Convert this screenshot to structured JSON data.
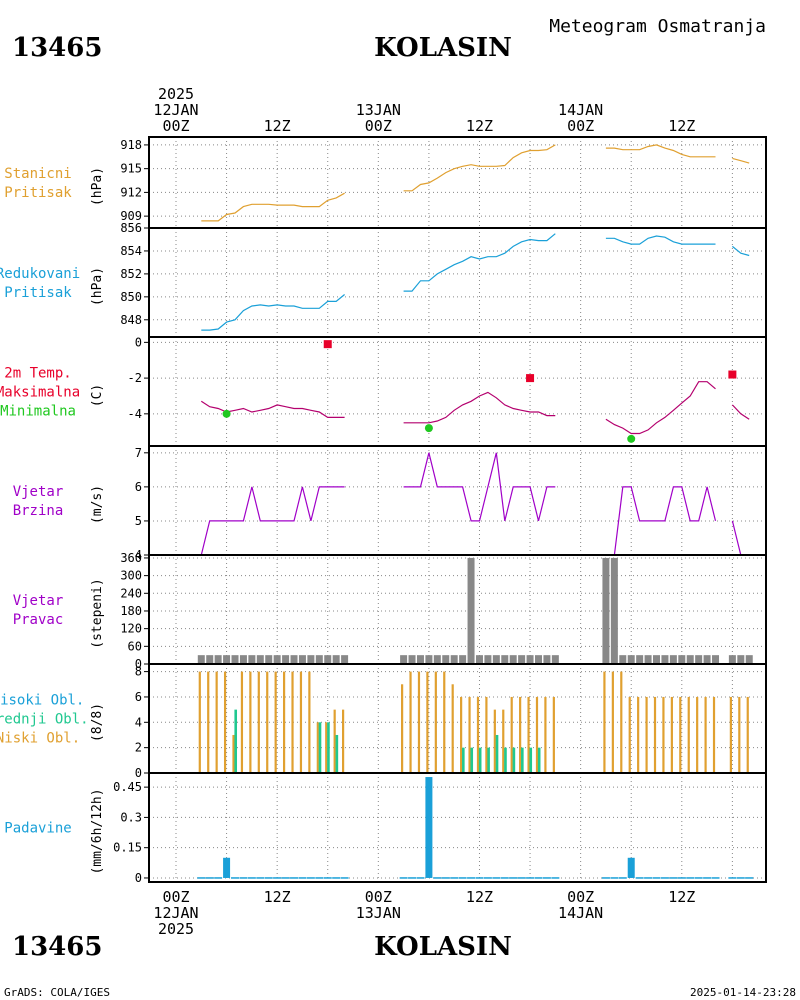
{
  "header": {
    "station_id": "13465",
    "station_name": "KOLASIN",
    "product": "Meteogram Osmatranja"
  },
  "footer": {
    "station_id": "13465",
    "station_name": "KOLASIN",
    "credit": "GrADS: COLA/IGES",
    "timestamp": "2025-01-14-23:28"
  },
  "time_axis": {
    "top_labels": [
      {
        "hour": 0,
        "lines": [
          "2025",
          "12JAN",
          "00Z"
        ]
      },
      {
        "hour": 12,
        "lines": [
          "12Z"
        ]
      },
      {
        "hour": 24,
        "lines": [
          "13JAN",
          "00Z"
        ]
      },
      {
        "hour": 36,
        "lines": [
          "12Z"
        ]
      },
      {
        "hour": 48,
        "lines": [
          "14JAN",
          "00Z"
        ]
      },
      {
        "hour": 60,
        "lines": [
          "12Z"
        ]
      }
    ],
    "bottom_labels": [
      {
        "hour": 0,
        "lines": [
          "00Z",
          "12JAN",
          "2025"
        ]
      },
      {
        "hour": 12,
        "lines": [
          "12Z"
        ]
      },
      {
        "hour": 24,
        "lines": [
          "00Z",
          "13JAN"
        ]
      },
      {
        "hour": 36,
        "lines": [
          "12Z"
        ]
      },
      {
        "hour": 48,
        "lines": [
          "00Z",
          "14JAN"
        ]
      },
      {
        "hour": 60,
        "lines": [
          "12Z"
        ]
      }
    ]
  },
  "colors": {
    "station_pressure": "#e0a030",
    "reduced_pressure": "#1aa0d8",
    "tmax": "#e8002a",
    "tmin": "#20c820",
    "temp_line": "#b4006e",
    "wind": "#a000c8",
    "wind_dir_bar": "#888888",
    "cloud_low": "#e0a030",
    "cloud_mid": "#20c890",
    "cloud_high": "#1aa0d8",
    "precip": "#1aa0d8",
    "grid": "#888888",
    "text": "#000000"
  },
  "chart_data": [
    {
      "id": "station_pressure",
      "type": "line",
      "label_lines": [
        "Stanicni",
        "Pritisak"
      ],
      "unit": "(hPa)",
      "ylim": [
        907.5,
        919
      ],
      "yticks": [
        909,
        912,
        915,
        918
      ],
      "gap_threshold": 2,
      "series": [
        {
          "x": [
            3,
            4,
            5,
            6,
            7,
            8,
            9,
            10,
            11,
            12,
            13,
            14,
            15,
            16,
            17,
            18,
            19,
            20
          ],
          "values": [
            908.4,
            908.4,
            908.4,
            909.2,
            909.4,
            910.2,
            910.5,
            910.5,
            910.5,
            910.4,
            910.4,
            910.4,
            910.2,
            910.2,
            910.2,
            911.0,
            911.3,
            911.9
          ]
        },
        {
          "x": [
            27,
            28,
            29,
            30,
            31,
            32,
            33,
            34,
            35,
            36,
            37,
            38,
            39,
            40,
            41,
            42,
            43,
            44,
            45
          ],
          "values": [
            912.2,
            912.2,
            913.0,
            913.2,
            913.8,
            914.5,
            915.0,
            915.3,
            915.5,
            915.3,
            915.3,
            915.3,
            915.4,
            916.4,
            917.0,
            917.3,
            917.3,
            917.4,
            918.0
          ]
        },
        {
          "x": [
            51,
            52,
            53,
            54,
            55,
            56,
            57,
            58,
            59,
            60,
            61,
            62,
            63,
            64
          ],
          "values": [
            917.6,
            917.6,
            917.4,
            917.4,
            917.4,
            917.8,
            918.0,
            917.6,
            917.3,
            916.8,
            916.5,
            916.5,
            916.5,
            916.5
          ]
        },
        {
          "x": [
            66,
            67,
            68
          ],
          "values": [
            916.3,
            916.0,
            915.7
          ]
        }
      ]
    },
    {
      "id": "reduced_pressure",
      "type": "line",
      "label_lines": [
        "Redukovani",
        "Pritisak"
      ],
      "unit": "(hPa)",
      "ylim": [
        846.5,
        856
      ],
      "yticks": [
        848,
        850,
        852,
        854,
        856
      ],
      "gap_threshold": 2,
      "series": [
        {
          "x": [
            3,
            4,
            5,
            6,
            7,
            8,
            9,
            10,
            11,
            12,
            13,
            14,
            15,
            16,
            17,
            18,
            19,
            20
          ],
          "values": [
            847.1,
            847.1,
            847.2,
            847.8,
            848.0,
            848.8,
            849.2,
            849.3,
            849.2,
            849.3,
            849.2,
            849.2,
            849.0,
            849.0,
            849.0,
            849.6,
            849.6,
            850.2
          ]
        },
        {
          "x": [
            27,
            28,
            29,
            30,
            31,
            32,
            33,
            34,
            35,
            36,
            37,
            38,
            39,
            40,
            41,
            42,
            43,
            44,
            45
          ],
          "values": [
            850.5,
            850.5,
            851.4,
            851.4,
            852.0,
            852.4,
            852.8,
            853.1,
            853.5,
            853.3,
            853.5,
            853.5,
            853.8,
            854.4,
            854.8,
            855.0,
            854.9,
            854.9,
            855.5
          ]
        },
        {
          "x": [
            51,
            52,
            53,
            54,
            55,
            56,
            57,
            58,
            59,
            60,
            61,
            62,
            63,
            64
          ],
          "values": [
            855.1,
            855.1,
            854.8,
            854.6,
            854.6,
            855.1,
            855.3,
            855.2,
            854.8,
            854.6,
            854.6,
            854.6,
            854.6,
            854.6
          ]
        },
        {
          "x": [
            66,
            67,
            68
          ],
          "values": [
            854.4,
            853.8,
            853.6
          ]
        }
      ]
    },
    {
      "id": "temperature",
      "type": "line",
      "label_lines": [
        "2m Temp.",
        "Maksimalna",
        "Minimalna"
      ],
      "label_color_keys": [
        "tmax",
        "tmax",
        "tmin"
      ],
      "unit": "(C)",
      "ylim": [
        -5.8,
        0.3
      ],
      "yticks": [
        0,
        -2,
        -4
      ],
      "gap_threshold": 2,
      "series": [
        {
          "x": [
            3,
            4,
            5,
            6,
            7,
            8,
            9,
            10,
            11,
            12,
            13,
            14,
            15,
            16,
            17,
            18,
            19,
            20
          ],
          "values": [
            -3.3,
            -3.6,
            -3.7,
            -3.9,
            -3.8,
            -3.7,
            -3.9,
            -3.8,
            -3.7,
            -3.5,
            -3.6,
            -3.7,
            -3.7,
            -3.8,
            -3.9,
            -4.2,
            -4.2,
            -4.2
          ]
        },
        {
          "x": [
            27,
            28,
            29,
            30,
            31,
            32,
            33,
            34,
            35,
            36,
            37,
            38,
            39,
            40,
            41,
            42,
            43,
            44,
            45
          ],
          "values": [
            -4.5,
            -4.5,
            -4.5,
            -4.5,
            -4.4,
            -4.2,
            -3.8,
            -3.5,
            -3.3,
            -3.0,
            -2.8,
            -3.1,
            -3.5,
            -3.7,
            -3.8,
            -3.9,
            -3.9,
            -4.1,
            -4.1
          ]
        },
        {
          "x": [
            51,
            52,
            53,
            54,
            55,
            56,
            57,
            58,
            59,
            60,
            61,
            62,
            63,
            64
          ],
          "values": [
            -4.3,
            -4.6,
            -4.8,
            -5.1,
            -5.1,
            -4.9,
            -4.5,
            -4.2,
            -3.8,
            -3.4,
            -3.0,
            -2.2,
            -2.2,
            -2.6
          ]
        },
        {
          "x": [
            66,
            67,
            68
          ],
          "values": [
            -3.5,
            -4.0,
            -4.3
          ]
        }
      ],
      "tmax_points": [
        {
          "x": 18,
          "y": -0.1
        },
        {
          "x": 42,
          "y": -2.0
        },
        {
          "x": 66,
          "y": -1.8
        }
      ],
      "tmin_points": [
        {
          "x": 6,
          "y": -4.0
        },
        {
          "x": 30,
          "y": -4.8
        },
        {
          "x": 54,
          "y": -5.4
        }
      ]
    },
    {
      "id": "wind_speed",
      "type": "line",
      "label_lines": [
        "Vjetar",
        "Brzina"
      ],
      "unit": "(m/s)",
      "ylim": [
        4,
        7.2
      ],
      "yticks": [
        4,
        5,
        6,
        7
      ],
      "gap_threshold": 2,
      "series": [
        {
          "x": [
            3,
            4,
            5,
            6,
            7,
            8,
            9,
            10,
            11,
            12,
            13,
            14,
            15,
            16,
            17,
            18,
            19,
            20
          ],
          "values": [
            4,
            5,
            5,
            5,
            5,
            5,
            6,
            5,
            5,
            5,
            5,
            5,
            6,
            5,
            6,
            6,
            6,
            6
          ]
        },
        {
          "x": [
            27,
            28,
            29,
            30,
            31,
            32,
            33,
            34,
            35,
            36,
            37,
            38,
            39,
            40,
            41,
            42,
            43,
            44,
            45
          ],
          "values": [
            6,
            6,
            6,
            7,
            6,
            6,
            6,
            6,
            5,
            5,
            6,
            7,
            5,
            6,
            6,
            6,
            5,
            6,
            6
          ]
        },
        {
          "x": [
            51,
            52,
            53,
            54,
            55,
            56,
            57,
            58,
            59,
            60,
            61,
            62,
            63,
            64
          ],
          "values": [
            4,
            4,
            6,
            6,
            5,
            5,
            5,
            5,
            6,
            6,
            5,
            5,
            6,
            5
          ]
        },
        {
          "x": [
            66,
            67,
            68
          ],
          "values": [
            5,
            4,
            4
          ]
        }
      ]
    },
    {
      "id": "wind_direction",
      "type": "bar",
      "label_lines": [
        "Vjetar",
        "Pravac"
      ],
      "unit": "(stepeni)",
      "ylim": [
        0,
        370
      ],
      "yticks": [
        0,
        60,
        120,
        180,
        240,
        300,
        360
      ],
      "x": [
        3,
        4,
        5,
        6,
        7,
        8,
        9,
        10,
        11,
        12,
        13,
        14,
        15,
        16,
        17,
        18,
        19,
        20,
        27,
        28,
        29,
        30,
        31,
        32,
        33,
        34,
        35,
        36,
        37,
        38,
        39,
        40,
        41,
        42,
        43,
        44,
        45,
        51,
        52,
        53,
        54,
        55,
        56,
        57,
        58,
        59,
        60,
        61,
        62,
        63,
        64,
        66,
        67,
        68
      ],
      "values": [
        30,
        30,
        30,
        30,
        30,
        30,
        30,
        30,
        30,
        30,
        30,
        30,
        30,
        30,
        30,
        30,
        30,
        30,
        30,
        30,
        30,
        30,
        30,
        30,
        30,
        30,
        360,
        30,
        30,
        30,
        30,
        30,
        30,
        30,
        30,
        30,
        30,
        360,
        360,
        30,
        30,
        30,
        30,
        30,
        30,
        30,
        30,
        30,
        30,
        30,
        30,
        30,
        30,
        30
      ]
    },
    {
      "id": "clouds",
      "type": "bar",
      "label_lines": [
        "Visoki Obl.",
        "Srednji Obl.",
        "Niski Obl."
      ],
      "label_color_keys": [
        "cloud_high",
        "cloud_mid",
        "cloud_low"
      ],
      "unit": "(8/8)",
      "ylim": [
        0,
        8.6
      ],
      "yticks": [
        0,
        2,
        4,
        6,
        8
      ],
      "x": [
        3,
        4,
        5,
        6,
        7,
        8,
        9,
        10,
        11,
        12,
        13,
        14,
        15,
        16,
        17,
        18,
        19,
        20,
        27,
        28,
        29,
        30,
        31,
        32,
        33,
        34,
        35,
        36,
        37,
        38,
        39,
        40,
        41,
        42,
        43,
        44,
        45,
        51,
        52,
        53,
        54,
        55,
        56,
        57,
        58,
        59,
        60,
        61,
        62,
        63,
        64,
        66,
        67,
        68
      ],
      "series": [
        {
          "name": "Niski Obl.",
          "values": [
            8,
            8,
            8,
            8,
            3,
            8,
            8,
            8,
            8,
            8,
            8,
            8,
            8,
            8,
            4,
            4,
            5,
            5,
            7,
            8,
            8,
            8,
            8,
            8,
            7,
            6,
            6,
            6,
            6,
            5,
            5,
            6,
            6,
            6,
            6,
            6,
            6,
            8,
            8,
            8,
            6,
            6,
            6,
            6,
            6,
            6,
            6,
            6,
            6,
            6,
            6,
            6,
            6,
            6
          ]
        },
        {
          "name": "Srednji Obl.",
          "values": [
            0,
            0,
            0,
            0,
            5,
            0,
            0,
            0,
            0,
            0,
            0,
            0,
            0,
            0,
            4,
            4,
            3,
            0,
            0,
            0,
            0,
            0,
            0,
            0,
            0,
            2,
            2,
            2,
            2,
            3,
            2,
            2,
            2,
            2,
            2,
            0,
            0,
            0,
            0,
            0,
            0,
            0,
            0,
            0,
            0,
            0,
            0,
            0,
            0,
            0,
            0,
            0,
            0,
            0
          ]
        },
        {
          "name": "Visoki Obl.",
          "values": [
            0,
            0,
            0,
            0,
            0,
            0,
            0,
            0,
            0,
            0,
            0,
            0,
            0,
            0,
            0,
            0,
            0,
            0,
            0,
            0,
            0,
            0,
            0,
            0,
            0,
            0,
            0,
            0,
            0,
            0,
            0,
            0,
            0,
            0,
            0,
            0,
            0,
            0,
            0,
            0,
            0,
            0,
            0,
            0,
            0,
            0,
            0,
            0,
            0,
            0,
            0,
            0,
            0,
            0
          ]
        }
      ]
    },
    {
      "id": "precipitation",
      "type": "bar",
      "label_lines": [
        "Padavine"
      ],
      "unit": "(mm/6h/12h)",
      "ylim": [
        -0.02,
        0.52
      ],
      "yticks": [
        0,
        0.15,
        0.3,
        0.45
      ],
      "ytick_labels": [
        "0",
        "0.15",
        "0.3",
        "0.45"
      ],
      "x": [
        3,
        4,
        5,
        6,
        7,
        8,
        9,
        10,
        11,
        12,
        13,
        14,
        15,
        16,
        17,
        18,
        19,
        20,
        27,
        28,
        29,
        30,
        31,
        32,
        33,
        34,
        35,
        36,
        37,
        38,
        39,
        40,
        41,
        42,
        43,
        44,
        45,
        51,
        52,
        53,
        54,
        55,
        56,
        57,
        58,
        59,
        60,
        61,
        62,
        63,
        64,
        66,
        67,
        68
      ],
      "values": [
        0,
        0,
        0,
        0.1,
        0,
        0,
        0,
        0,
        0,
        0,
        0,
        0,
        0,
        0,
        0,
        0,
        0,
        0,
        0,
        0,
        0,
        0.5,
        0,
        0,
        0,
        0,
        0,
        0,
        0,
        0,
        0,
        0,
        0,
        0,
        0,
        0,
        0,
        0,
        0,
        0,
        0.1,
        0,
        0,
        0,
        0,
        0,
        0,
        0,
        0,
        0,
        0,
        0,
        0,
        0
      ]
    }
  ]
}
